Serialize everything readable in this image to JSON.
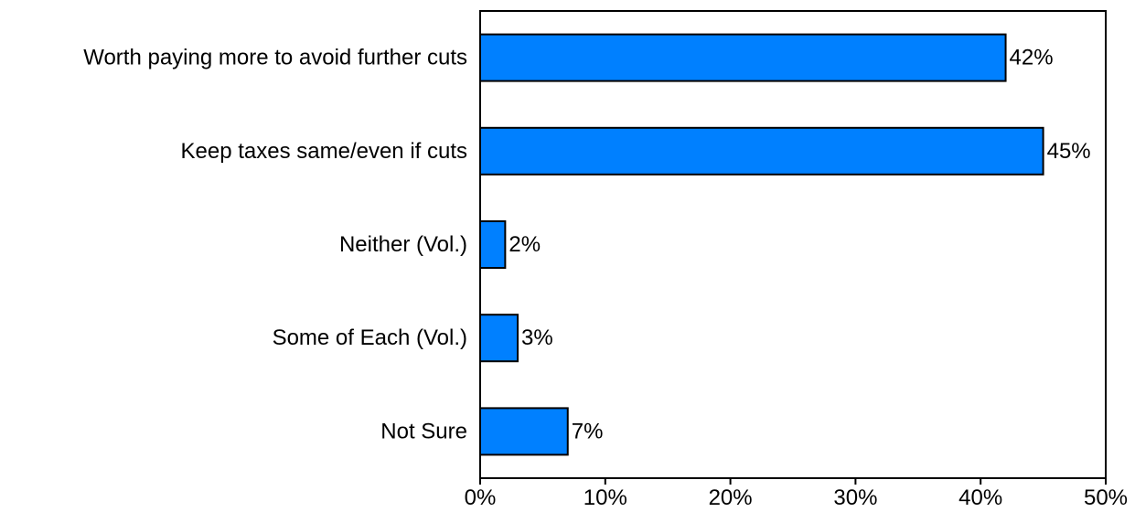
{
  "chart_data": {
    "type": "bar",
    "orientation": "horizontal",
    "categories": [
      "Worth paying more to avoid further cuts",
      "Keep taxes same/even if cuts",
      "Neither (Vol.)",
      "Some of Each (Vol.)",
      "Not Sure"
    ],
    "values": [
      42,
      45,
      2,
      3,
      7
    ],
    "value_labels": [
      "42%",
      "45%",
      "2%",
      "3%",
      "7%"
    ],
    "title": "",
    "xlabel": "",
    "ylabel": "",
    "xlim": [
      0,
      50
    ],
    "x_ticks": [
      0,
      10,
      20,
      30,
      40,
      50
    ],
    "x_tick_labels": [
      "0%",
      "10%",
      "20%",
      "30%",
      "40%",
      "50%"
    ],
    "grid": false,
    "legend": "none",
    "bar_color": "#0080ff",
    "bar_edge_color": "#000000"
  }
}
